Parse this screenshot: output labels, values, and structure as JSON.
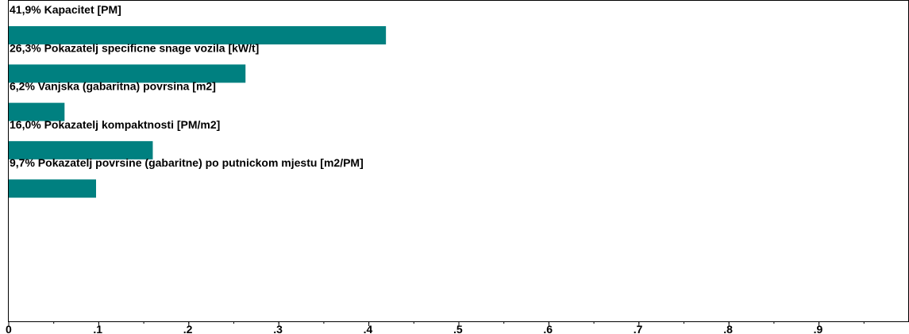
{
  "chart_data": {
    "type": "bar",
    "orientation": "horizontal",
    "bar_color": "#008080",
    "background": "#ffffff",
    "grid": false,
    "categories": [
      "41,9% Kapacitet [PM]",
      "26,3% Pokazatelj specificne snage vozila [kW/t]",
      "6,2% Vanjska (gabaritna) povrsina [m2]",
      "16,0% Pokazatelj kompaktnosti [PM/m2]",
      "9,7% Pokazatelj povrsine (gabaritne) po putnickom mjestu [m2/PM]"
    ],
    "values": [
      0.419,
      0.263,
      0.062,
      0.16,
      0.097
    ],
    "xlim": [
      0,
      1
    ],
    "x_ticks": [
      {
        "value": 0,
        "label": "0"
      },
      {
        "value": 0.1,
        "label": ".1"
      },
      {
        "value": 0.2,
        "label": ".2"
      },
      {
        "value": 0.3,
        "label": ".3"
      },
      {
        "value": 0.4,
        "label": ".4"
      },
      {
        "value": 0.5,
        "label": ".5"
      },
      {
        "value": 0.6,
        "label": ".6"
      },
      {
        "value": 0.7,
        "label": ".7"
      },
      {
        "value": 0.8,
        "label": ".8"
      },
      {
        "value": 0.9,
        "label": ".9"
      }
    ],
    "minor_tick_step": 0.05
  }
}
